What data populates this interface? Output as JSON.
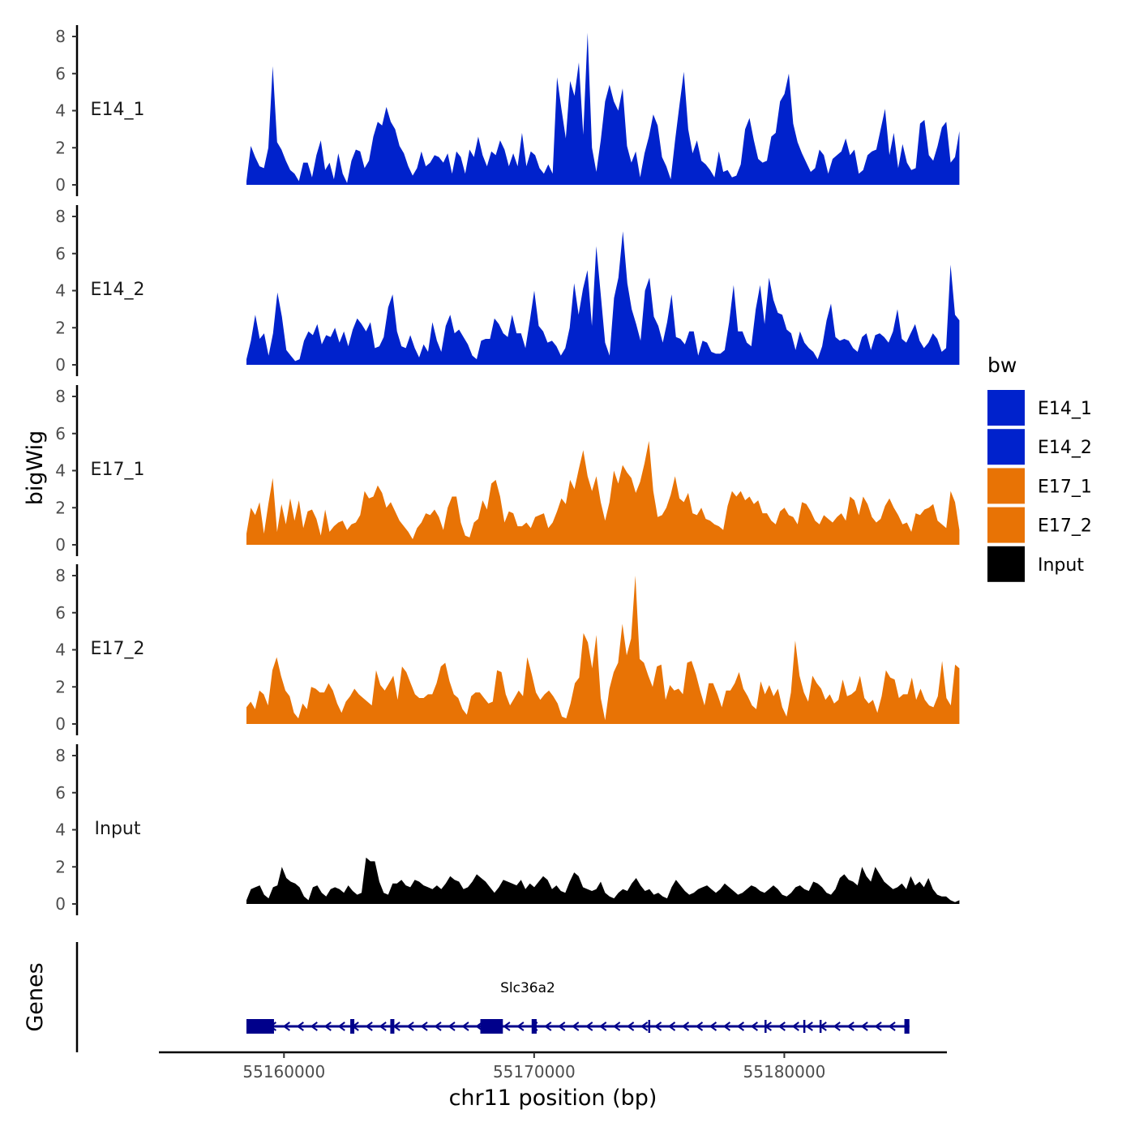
{
  "chart_data": {
    "type": "area",
    "xlabel": "chr11 position (bp)",
    "ylabel": "bigWig",
    "genes_label": "Genes",
    "xlim": [
      55155000,
      55186500
    ],
    "x_start": 55158500,
    "x_end": 55187000,
    "x_ticks": [
      55160000,
      55170000,
      55180000
    ],
    "x_tick_labels": [
      "55160000",
      "55170000",
      "55180000"
    ],
    "ylim": [
      0,
      8
    ],
    "y_ticks": [
      0,
      2,
      4,
      6,
      8
    ],
    "y_tick_labels": [
      "0",
      "2",
      "4",
      "6",
      "8"
    ],
    "legend": {
      "title": "bw",
      "entries": [
        {
          "name": "E14_1",
          "color": "#0022CC"
        },
        {
          "name": "E14_2",
          "color": "#0022CC"
        },
        {
          "name": "E17_1",
          "color": "#E87305"
        },
        {
          "name": "E17_2",
          "color": "#E87305"
        },
        {
          "name": "Input",
          "color": "#000000"
        }
      ]
    },
    "series": [
      {
        "name": "E14_1",
        "color": "#0022CC",
        "values": [
          0.2,
          2.1,
          1.5,
          1.0,
          0.9,
          2.0,
          6.4,
          2.3,
          1.9,
          1.3,
          0.8,
          0.6,
          0.2,
          1.2,
          1.2,
          0.4,
          1.6,
          2.4,
          0.8,
          1.2,
          0.3,
          1.7,
          0.6,
          0.1,
          1.3,
          1.9,
          1.8,
          0.9,
          1.3,
          2.6,
          3.4,
          3.2,
          4.2,
          3.4,
          3.0,
          2.1,
          1.7,
          1.0,
          0.5,
          0.9,
          1.8,
          1.0,
          1.2,
          1.6,
          1.5,
          1.2,
          1.7,
          0.6,
          1.8,
          1.5,
          0.6,
          1.9,
          1.5,
          2.6,
          1.6,
          1.0,
          1.8,
          1.6,
          2.4,
          1.9,
          1.0,
          1.7,
          1.0,
          2.8,
          1.0,
          1.8,
          1.6,
          0.9,
          0.6,
          1.1,
          0.6,
          5.8,
          4.1,
          2.5,
          5.6,
          4.8,
          6.6,
          2.7,
          8.2,
          2.0,
          0.7,
          2.4,
          4.5,
          5.4,
          4.5,
          4.0,
          5.2,
          2.1,
          1.2,
          1.8,
          0.4,
          1.7,
          2.6,
          3.8,
          3.2,
          1.5,
          1.0,
          0.3,
          2.4,
          4.3,
          6.1,
          3.0,
          1.7,
          2.4,
          1.3,
          1.1,
          0.8,
          0.4,
          1.8,
          0.7,
          0.8,
          0.4,
          0.5,
          1.1,
          3.0,
          3.6,
          2.4,
          1.4,
          1.2,
          1.3,
          2.6,
          2.8,
          4.5,
          4.9,
          6.0,
          3.3,
          2.3,
          1.7,
          1.2,
          0.7,
          0.9,
          1.9,
          1.6,
          0.6,
          1.4,
          1.6,
          1.8,
          2.5,
          1.6,
          1.9,
          0.6,
          0.8,
          1.6,
          1.8,
          1.9,
          3.0,
          4.1,
          1.6,
          2.8,
          0.9,
          2.2,
          1.2,
          0.8,
          0.9,
          3.3,
          3.5,
          1.6,
          1.3,
          2.1,
          3.1,
          3.4,
          1.2,
          1.5,
          2.9
        ]
      },
      {
        "name": "E14_2",
        "color": "#0022CC",
        "values": [
          0.3,
          1.3,
          2.7,
          1.4,
          1.7,
          0.5,
          1.7,
          3.9,
          2.6,
          0.8,
          0.5,
          0.2,
          0.3,
          1.3,
          1.8,
          1.6,
          2.2,
          1.1,
          1.6,
          1.5,
          2.0,
          1.2,
          1.8,
          1.0,
          1.9,
          2.5,
          2.2,
          1.8,
          2.3,
          0.9,
          1.0,
          1.5,
          3.1,
          3.8,
          1.8,
          1.0,
          0.9,
          1.6,
          0.9,
          0.4,
          1.1,
          0.7,
          2.3,
          1.3,
          0.7,
          2.1,
          2.7,
          1.7,
          1.9,
          1.5,
          1.1,
          0.5,
          0.3,
          1.3,
          1.4,
          1.4,
          2.5,
          2.2,
          1.7,
          1.5,
          2.7,
          1.7,
          1.7,
          0.9,
          2.4,
          4.0,
          2.1,
          1.8,
          1.2,
          1.3,
          1.0,
          0.5,
          0.9,
          2.0,
          4.4,
          2.7,
          4.1,
          5.1,
          2.1,
          6.4,
          3.8,
          1.2,
          0.5,
          3.6,
          4.7,
          7.2,
          4.4,
          3.0,
          2.2,
          1.3,
          4.0,
          4.7,
          2.6,
          2.1,
          1.2,
          2.3,
          3.8,
          1.5,
          1.4,
          1.1,
          1.8,
          1.8,
          0.5,
          1.3,
          1.2,
          0.7,
          0.6,
          0.6,
          0.8,
          2.3,
          4.3,
          1.8,
          1.8,
          1.2,
          1.0,
          3.0,
          4.3,
          2.2,
          4.7,
          3.5,
          2.8,
          2.7,
          1.9,
          1.7,
          0.8,
          1.8,
          1.2,
          0.9,
          0.7,
          0.3,
          1.0,
          2.4,
          3.3,
          1.5,
          1.3,
          1.4,
          1.3,
          0.9,
          0.7,
          1.5,
          1.7,
          0.8,
          1.6,
          1.7,
          1.5,
          1.2,
          1.8,
          3.0,
          1.4,
          1.2,
          1.7,
          2.2,
          1.3,
          0.9,
          1.2,
          1.7,
          1.4,
          0.7,
          0.9,
          5.4,
          2.7,
          2.4
        ]
      },
      {
        "name": "E17_1",
        "color": "#E87305",
        "values": [
          0.6,
          2.0,
          1.6,
          2.3,
          0.6,
          2.2,
          3.6,
          0.7,
          2.2,
          1.1,
          2.5,
          1.3,
          2.4,
          0.9,
          1.8,
          1.9,
          1.4,
          0.5,
          1.9,
          0.7,
          1.0,
          1.2,
          1.3,
          0.8,
          1.1,
          1.2,
          1.6,
          2.9,
          2.5,
          2.6,
          3.2,
          2.8,
          2.0,
          2.3,
          1.8,
          1.3,
          1.0,
          0.7,
          0.3,
          0.9,
          1.2,
          1.7,
          1.6,
          1.9,
          1.5,
          0.8,
          2.0,
          2.6,
          2.6,
          1.2,
          0.5,
          0.4,
          1.2,
          1.4,
          2.4,
          1.9,
          3.3,
          3.5,
          2.6,
          1.2,
          1.8,
          1.7,
          1.0,
          1.0,
          1.2,
          0.9,
          1.5,
          1.6,
          1.7,
          0.9,
          1.2,
          1.8,
          2.5,
          2.2,
          3.5,
          3.0,
          4.1,
          5.1,
          3.7,
          2.9,
          3.7,
          2.3,
          1.3,
          2.3,
          4.0,
          3.3,
          4.3,
          3.9,
          3.6,
          2.8,
          3.4,
          4.4,
          5.6,
          2.9,
          1.5,
          1.6,
          2.0,
          2.7,
          3.7,
          2.5,
          2.3,
          2.8,
          1.7,
          1.6,
          2.0,
          1.4,
          1.3,
          1.1,
          1.0,
          0.8,
          2.1,
          2.9,
          2.6,
          2.9,
          2.4,
          2.6,
          2.2,
          2.4,
          1.7,
          1.7,
          1.3,
          1.1,
          1.8,
          2.0,
          1.6,
          1.5,
          1.1,
          2.3,
          2.2,
          1.8,
          1.3,
          1.1,
          1.6,
          1.4,
          1.2,
          1.5,
          1.7,
          1.3,
          2.6,
          2.4,
          1.6,
          2.6,
          2.2,
          1.5,
          1.2,
          1.4,
          2.1,
          2.5,
          2.0,
          1.6,
          1.1,
          1.2,
          0.7,
          1.7,
          1.6,
          1.9,
          2.0,
          2.2,
          1.3,
          1.1,
          0.9,
          2.9,
          2.3,
          0.8
        ]
      },
      {
        "name": "E17_2",
        "color": "#E87305",
        "values": [
          0.9,
          1.2,
          0.8,
          1.8,
          1.6,
          1.0,
          2.9,
          3.6,
          2.6,
          1.8,
          1.5,
          0.6,
          0.3,
          1.1,
          0.8,
          2.0,
          1.9,
          1.7,
          1.7,
          2.2,
          1.8,
          1.1,
          0.6,
          1.2,
          1.5,
          1.9,
          1.6,
          1.4,
          1.2,
          1.0,
          2.9,
          2.1,
          1.8,
          2.2,
          2.6,
          1.3,
          3.1,
          2.8,
          2.2,
          1.6,
          1.4,
          1.4,
          1.6,
          1.6,
          2.2,
          3.1,
          3.3,
          2.3,
          1.6,
          1.4,
          0.8,
          0.5,
          1.5,
          1.7,
          1.7,
          1.4,
          1.1,
          1.2,
          2.9,
          2.8,
          1.6,
          1.0,
          1.4,
          1.8,
          1.5,
          3.6,
          2.7,
          1.7,
          1.3,
          1.6,
          1.8,
          1.5,
          1.1,
          0.4,
          0.3,
          1.1,
          2.2,
          2.5,
          4.9,
          4.4,
          3.0,
          4.8,
          1.4,
          0.2,
          1.9,
          2.8,
          3.3,
          5.4,
          3.7,
          4.6,
          8.0,
          3.5,
          3.3,
          2.6,
          2.0,
          3.1,
          3.2,
          1.3,
          2.1,
          1.8,
          1.9,
          1.6,
          3.3,
          3.4,
          2.7,
          1.8,
          1.0,
          2.2,
          2.2,
          1.6,
          0.9,
          1.8,
          1.8,
          2.2,
          2.8,
          1.9,
          1.5,
          1.0,
          0.8,
          2.3,
          1.6,
          2.1,
          1.5,
          1.9,
          0.9,
          0.4,
          1.7,
          4.5,
          2.6,
          1.7,
          1.2,
          2.6,
          2.2,
          1.9,
          1.3,
          1.6,
          1.1,
          1.3,
          2.4,
          1.5,
          1.6,
          1.8,
          2.6,
          1.4,
          1.1,
          1.3,
          0.6,
          1.5,
          2.9,
          2.5,
          2.4,
          1.4,
          1.6,
          1.6,
          2.5,
          1.3,
          1.9,
          1.3,
          1.0,
          0.9,
          1.5,
          3.4,
          1.4,
          1.0,
          3.2,
          3.0
        ]
      },
      {
        "name": "Input",
        "color": "#000000",
        "values": [
          0.2,
          0.8,
          0.9,
          1.0,
          0.5,
          0.3,
          0.9,
          1.0,
          2.0,
          1.4,
          1.2,
          1.1,
          0.9,
          0.4,
          0.2,
          0.9,
          1.0,
          0.6,
          0.4,
          0.8,
          0.9,
          0.8,
          0.6,
          1.0,
          0.7,
          0.5,
          0.6,
          2.5,
          2.3,
          2.3,
          1.2,
          0.6,
          0.5,
          1.1,
          1.1,
          1.3,
          1.0,
          0.9,
          1.3,
          1.2,
          1.0,
          0.9,
          0.8,
          1.0,
          0.8,
          1.1,
          1.5,
          1.3,
          1.2,
          0.8,
          0.9,
          1.2,
          1.6,
          1.4,
          1.2,
          0.9,
          0.6,
          0.9,
          1.3,
          1.2,
          1.1,
          1.0,
          1.3,
          0.8,
          1.1,
          0.9,
          1.2,
          1.5,
          1.3,
          0.8,
          1.0,
          0.7,
          0.6,
          1.2,
          1.7,
          1.5,
          0.9,
          0.8,
          0.7,
          0.8,
          1.2,
          0.6,
          0.4,
          0.3,
          0.6,
          0.8,
          0.7,
          1.1,
          1.4,
          1.0,
          0.7,
          0.8,
          0.5,
          0.6,
          0.4,
          0.3,
          0.9,
          1.3,
          1.0,
          0.7,
          0.5,
          0.6,
          0.8,
          0.9,
          1.0,
          0.8,
          0.6,
          0.8,
          1.1,
          0.9,
          0.7,
          0.5,
          0.6,
          0.8,
          1.0,
          0.9,
          0.7,
          0.6,
          0.8,
          1.0,
          0.8,
          0.5,
          0.4,
          0.6,
          0.9,
          1.0,
          0.8,
          0.7,
          1.2,
          1.1,
          0.9,
          0.6,
          0.5,
          0.8,
          1.4,
          1.6,
          1.3,
          1.2,
          1.0,
          2.0,
          1.5,
          1.2,
          2.0,
          1.6,
          1.2,
          1.0,
          0.8,
          0.9,
          1.1,
          0.8,
          1.5,
          1.0,
          1.2,
          0.9,
          1.4,
          0.8,
          0.5,
          0.4,
          0.4,
          0.2,
          0.1,
          0.2
        ]
      }
    ],
    "gene": {
      "name": "Slc36a2",
      "start": 55158500,
      "end": 55185000,
      "strand": "-",
      "exons": [
        [
          55158500,
          55159600
        ],
        [
          55162650,
          55162800
        ],
        [
          55164250,
          55164380
        ],
        [
          55167850,
          55168750
        ],
        [
          55169900,
          55170100
        ],
        [
          55184800,
          55185000
        ]
      ],
      "marks": [
        55174600,
        55179250,
        55180800,
        55181450
      ]
    }
  }
}
